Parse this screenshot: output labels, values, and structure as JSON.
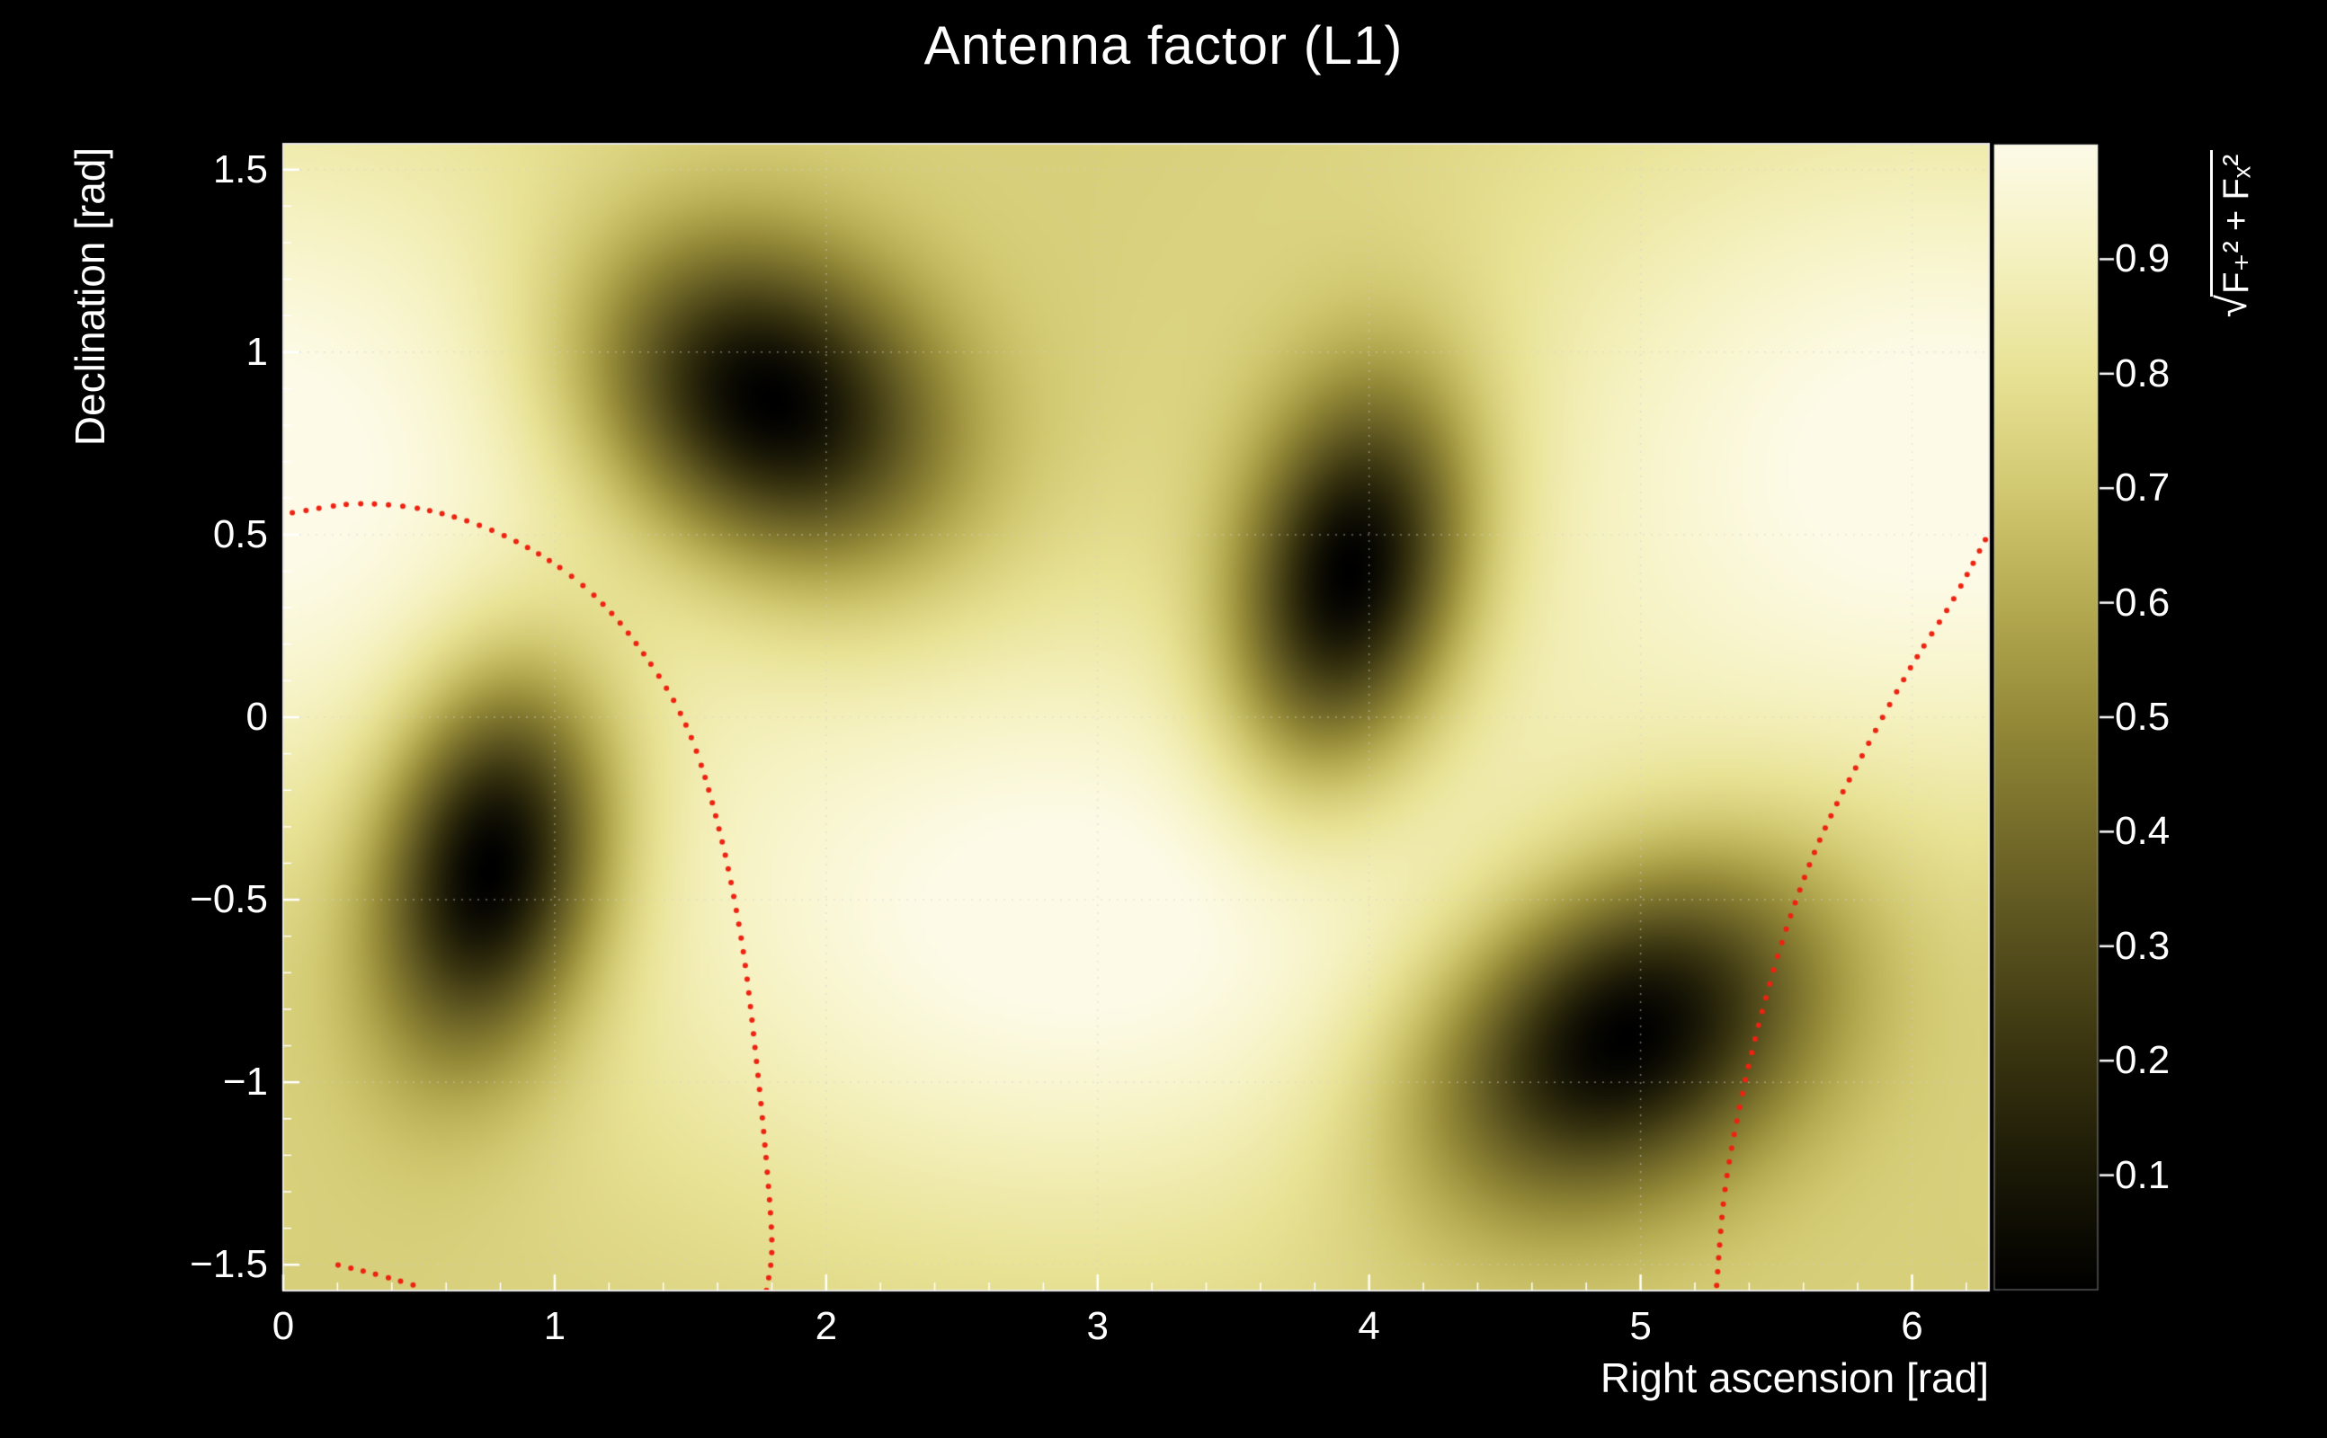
{
  "page": {
    "background": "#000000"
  },
  "title": "Antenna factor (L1)",
  "axes": {
    "x": {
      "title": "Right ascension [rad]",
      "min": 0,
      "max": 6.2832,
      "tick_values": [
        0,
        1,
        2,
        3,
        4,
        5,
        6
      ],
      "tick_labels": [
        "0",
        "1",
        "2",
        "3",
        "4",
        "5",
        "6"
      ]
    },
    "y": {
      "title": "Declination [rad]",
      "min": -1.5708,
      "max": 1.5708,
      "tick_values": [
        -1.5,
        -1,
        -0.5,
        0,
        0.5,
        1,
        1.5
      ],
      "tick_labels": [
        "−1.5",
        "−1",
        "−0.5",
        "0",
        "0.5",
        "1",
        "1.5"
      ]
    },
    "z": {
      "title_radical": "√",
      "title_expression": "F₊² + Fₓ²",
      "min": 0,
      "max": 1,
      "tick_values": [
        0.1,
        0.2,
        0.3,
        0.4,
        0.5,
        0.6,
        0.7,
        0.8,
        0.9
      ],
      "tick_labels": [
        "0.1",
        "0.2",
        "0.3",
        "0.4",
        "0.5",
        "0.6",
        "0.7",
        "0.8",
        "0.9"
      ]
    }
  },
  "chart_data": {
    "type": "heatmap",
    "title": "Antenna factor (L1)",
    "xlabel": "Right ascension [rad]",
    "ylabel": "Declination [rad]",
    "zlabel": "sqrt(F_plus^2 + F_cross^2)",
    "x_range": [
      0,
      6.2832
    ],
    "y_range": [
      -1.5708,
      1.5708
    ],
    "z_range": [
      0,
      1
    ],
    "grid": {
      "on": true,
      "color": "rgba(210,210,210,0.5)",
      "style": "dotted"
    },
    "field": {
      "base": 0.72,
      "maxima": [
        {
          "ra": 2.95,
          "dec": -0.55,
          "sra": 1.25,
          "sdec": 0.6,
          "amp": 0.3
        },
        {
          "ra": 6.1,
          "dec": 0.7,
          "sra": 1.2,
          "sdec": 0.7,
          "amp": 0.3
        }
      ],
      "nulls": [
        {
          "ra": 1.8,
          "dec": 0.87,
          "sra": 0.46,
          "sdec": 0.3,
          "tilt": -0.25
        },
        {
          "ra": 3.93,
          "dec": 0.4,
          "sra": 0.28,
          "sdec": 0.38,
          "tilt": -0.4
        },
        {
          "ra": 0.76,
          "dec": -0.42,
          "sra": 0.28,
          "sdec": 0.38,
          "tilt": -0.4
        },
        {
          "ra": 4.95,
          "dec": -0.88,
          "sra": 0.52,
          "sdec": 0.3,
          "tilt": 0.3
        }
      ]
    },
    "colormap": [
      [
        0.0,
        "#000000"
      ],
      [
        0.05,
        "#0d0c03"
      ],
      [
        0.1,
        "#1a1806"
      ],
      [
        0.2,
        "#37320f"
      ],
      [
        0.3,
        "#564f1d"
      ],
      [
        0.4,
        "#756c2a"
      ],
      [
        0.5,
        "#958a38"
      ],
      [
        0.6,
        "#b5ab52"
      ],
      [
        0.7,
        "#d2c972"
      ],
      [
        0.8,
        "#e8e295"
      ],
      [
        0.9,
        "#f5f1bf"
      ],
      [
        1.0,
        "#fdfbe8"
      ]
    ],
    "overlay": {
      "color": "#ee2211",
      "marker": "dot",
      "curves": [
        [
          [
            0.03,
            0.56
          ],
          [
            0.3,
            0.585
          ],
          [
            0.6,
            0.555
          ],
          [
            0.9,
            0.465
          ],
          [
            1.15,
            0.33
          ],
          [
            1.35,
            0.15
          ],
          [
            1.5,
            -0.05
          ],
          [
            1.61,
            -0.32
          ],
          [
            1.69,
            -0.62
          ],
          [
            1.74,
            -0.92
          ],
          [
            1.78,
            -1.22
          ],
          [
            1.8,
            -1.45
          ],
          [
            1.78,
            -1.57
          ]
        ],
        [
          [
            5.28,
            -1.56
          ],
          [
            5.31,
            -1.3
          ],
          [
            5.37,
            -1.05
          ],
          [
            5.45,
            -0.8
          ],
          [
            5.55,
            -0.55
          ],
          [
            5.67,
            -0.32
          ],
          [
            5.82,
            -0.1
          ],
          [
            5.99,
            0.13
          ],
          [
            6.15,
            0.32
          ],
          [
            6.28,
            0.5
          ]
        ],
        [
          [
            0.2,
            -1.5
          ],
          [
            0.36,
            -1.53
          ],
          [
            0.5,
            -1.56
          ]
        ]
      ]
    }
  }
}
